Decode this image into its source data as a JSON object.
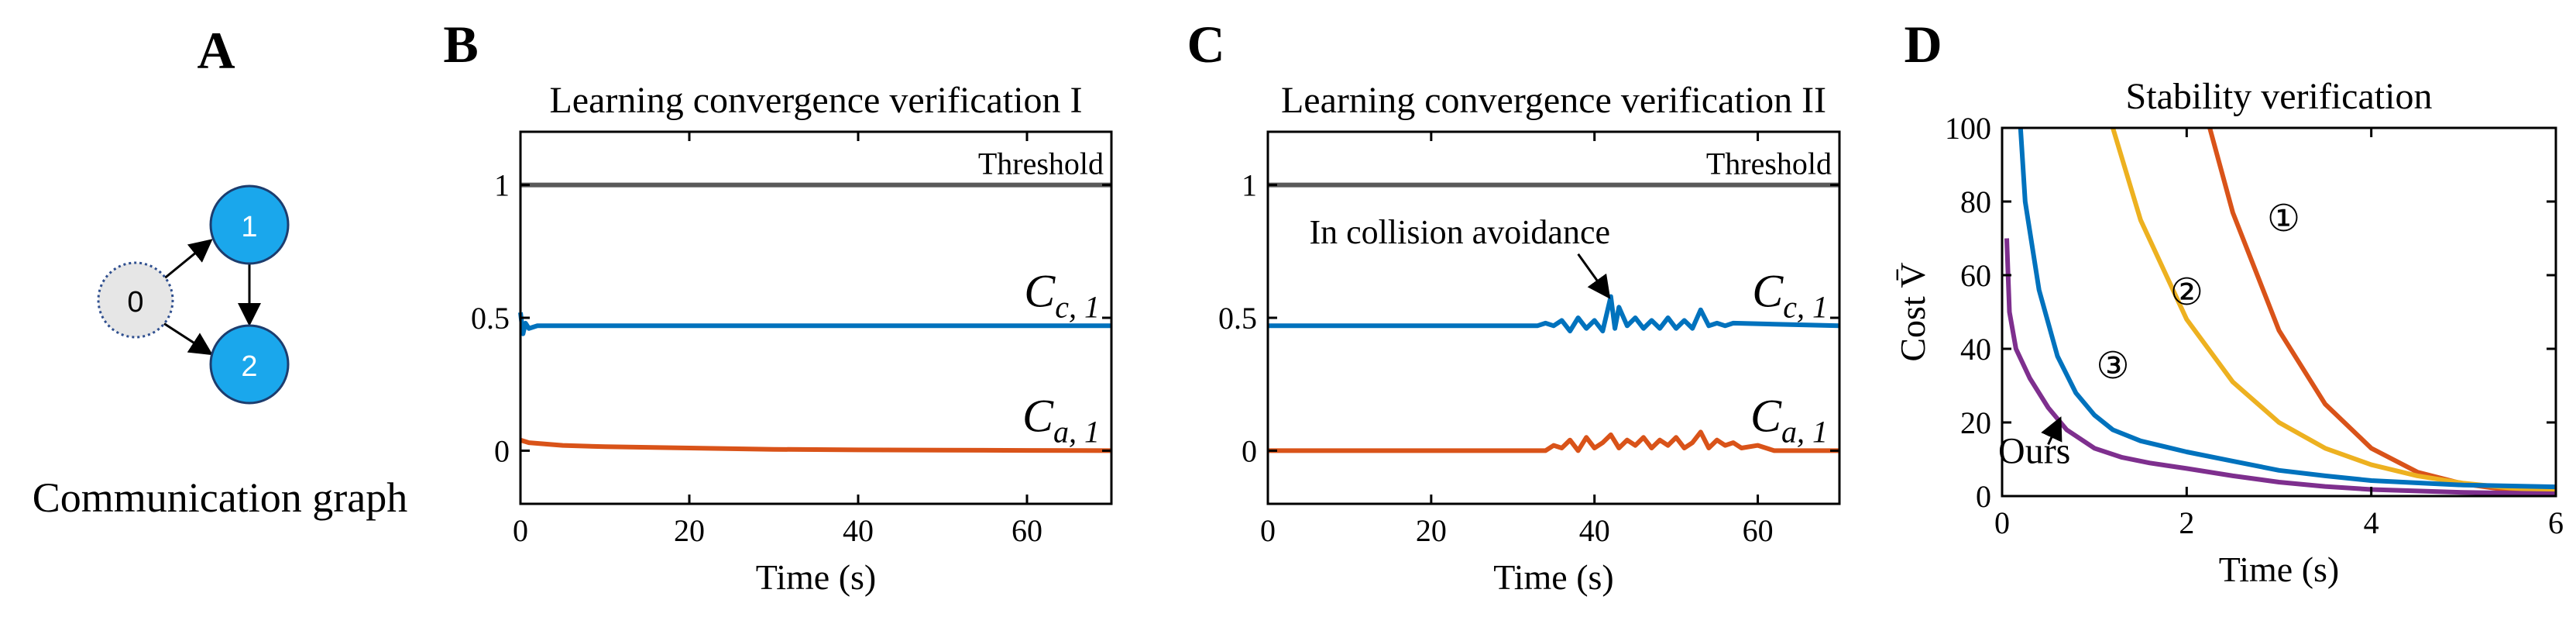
{
  "panels": {
    "A": {
      "letter": "A",
      "caption": "Communication graph",
      "nodes": [
        "0",
        "1",
        "2"
      ]
    },
    "B": {
      "letter": "B"
    },
    "C": {
      "letter": "C"
    },
    "D": {
      "letter": "D"
    }
  },
  "colors": {
    "blue": "#0072BD",
    "orange": "#D95319",
    "yellow": "#EDB120",
    "purple": "#7E2F8E",
    "threshold": "#595959",
    "node_fill": "#1AA7EC",
    "node0_fill": "#E6E6E6"
  },
  "chart_data": [
    {
      "id": "B",
      "type": "line",
      "title": "Learning convergence verification I",
      "xlabel": "Time (s)",
      "ylabel": "",
      "xlim": [
        0,
        70
      ],
      "ylim": [
        -0.2,
        1.2
      ],
      "xticks": [
        0,
        20,
        40,
        60
      ],
      "yticks": [
        0,
        0.5,
        1
      ],
      "ytick_labels": [
        "0",
        "0.5",
        "1"
      ],
      "threshold": {
        "value": 1,
        "label": "Threshold"
      },
      "series": [
        {
          "label_base": "C",
          "label_sub": "c, 1",
          "color": "blue",
          "x": [
            0,
            0.3,
            0.6,
            1,
            2,
            5,
            10,
            20,
            30,
            40,
            50,
            60,
            70
          ],
          "y": [
            0.52,
            0.44,
            0.48,
            0.46,
            0.47,
            0.47,
            0.47,
            0.47,
            0.47,
            0.47,
            0.47,
            0.47,
            0.47
          ]
        },
        {
          "label_base": "C",
          "label_sub": "a, 1",
          "color": "orange",
          "x": [
            0,
            1,
            5,
            10,
            20,
            30,
            40,
            50,
            60,
            70
          ],
          "y": [
            0.04,
            0.03,
            0.02,
            0.015,
            0.01,
            0.005,
            0.003,
            0.002,
            0.001,
            0.0
          ]
        }
      ]
    },
    {
      "id": "C",
      "type": "line",
      "title": "Learning convergence verification II",
      "xlabel": "Time (s)",
      "ylabel": "",
      "xlim": [
        0,
        70
      ],
      "ylim": [
        -0.2,
        1.2
      ],
      "xticks": [
        0,
        20,
        40,
        60
      ],
      "yticks": [
        0,
        0.5,
        1
      ],
      "ytick_labels": [
        "0",
        "0.5",
        "1"
      ],
      "threshold": {
        "value": 1,
        "label": "Threshold"
      },
      "annotation": {
        "text": "In collision avoidance",
        "x": 42,
        "y": 0.57
      },
      "series": [
        {
          "label_base": "C",
          "label_sub": "c, 1",
          "color": "blue",
          "x": [
            0,
            33,
            34,
            35,
            36,
            37,
            38,
            39,
            40,
            41,
            42,
            42.5,
            43,
            44,
            45,
            46,
            47,
            48,
            49,
            50,
            51,
            52,
            53,
            54,
            55,
            56,
            57,
            70
          ],
          "y": [
            0.47,
            0.47,
            0.48,
            0.47,
            0.49,
            0.45,
            0.5,
            0.46,
            0.49,
            0.45,
            0.58,
            0.46,
            0.54,
            0.47,
            0.5,
            0.46,
            0.49,
            0.46,
            0.5,
            0.46,
            0.49,
            0.46,
            0.53,
            0.47,
            0.48,
            0.47,
            0.48,
            0.47
          ]
        },
        {
          "label_base": "C",
          "label_sub": "a, 1",
          "color": "orange",
          "x": [
            0,
            34,
            35,
            36,
            37,
            38,
            39,
            40,
            41,
            42,
            43,
            44,
            45,
            46,
            47,
            48,
            49,
            50,
            51,
            52,
            53,
            54,
            55,
            56,
            57,
            58,
            60,
            62,
            70
          ],
          "y": [
            0.0,
            0.0,
            0.02,
            0.01,
            0.04,
            0.0,
            0.05,
            0.01,
            0.03,
            0.06,
            0.01,
            0.04,
            0.02,
            0.05,
            0.01,
            0.04,
            0.02,
            0.05,
            0.01,
            0.03,
            0.07,
            0.01,
            0.04,
            0.02,
            0.03,
            0.01,
            0.02,
            0.0,
            0.0
          ]
        }
      ]
    },
    {
      "id": "D",
      "type": "line",
      "title": "Stability verification",
      "xlabel": "Time (s)",
      "ylabel": "Cost V̄",
      "xlim": [
        0,
        6
      ],
      "ylim": [
        0,
        100
      ],
      "xticks": [
        0,
        2,
        4,
        6
      ],
      "yticks": [
        0,
        20,
        40,
        60,
        80,
        100
      ],
      "series": [
        {
          "label": "①",
          "color": "orange",
          "x": [
            2.25,
            2.5,
            3.0,
            3.5,
            4.0,
            4.5,
            5.0,
            5.5,
            6.0
          ],
          "y": [
            100,
            77,
            45,
            25,
            13,
            6.5,
            3.3,
            1.6,
            0.8
          ]
        },
        {
          "label": "②",
          "color": "yellow",
          "x": [
            1.2,
            1.5,
            2.0,
            2.5,
            3.0,
            3.5,
            4.0,
            4.5,
            5.0,
            5.5,
            6.0
          ],
          "y": [
            100,
            75,
            48,
            31,
            20,
            13,
            8.5,
            5.5,
            3.5,
            2.2,
            1.4
          ]
        },
        {
          "label": "③",
          "color": "blue",
          "x": [
            0.2,
            0.25,
            0.4,
            0.6,
            0.8,
            1.0,
            1.2,
            1.5,
            2.0,
            2.5,
            3.0,
            3.5,
            4.0,
            5.0,
            6.0
          ],
          "y": [
            100,
            80,
            56,
            38,
            28,
            22,
            18,
            15,
            12,
            9.5,
            7,
            5.5,
            4.2,
            3,
            2.5
          ]
        },
        {
          "label": "Ours",
          "color": "purple",
          "x": [
            0.05,
            0.08,
            0.15,
            0.3,
            0.5,
            0.7,
            1.0,
            1.3,
            1.6,
            2.0,
            2.5,
            3.0,
            3.5,
            4.0,
            5.0,
            6.0
          ],
          "y": [
            70,
            50,
            40,
            32,
            24,
            18,
            13,
            10.5,
            9,
            7.5,
            5.5,
            3.8,
            2.6,
            1.8,
            1.0,
            0.6
          ]
        }
      ],
      "label_positions": [
        {
          "text": "①",
          "x": 3.05,
          "y": 72
        },
        {
          "text": "②",
          "x": 2.0,
          "y": 52
        },
        {
          "text": "③",
          "x": 1.2,
          "y": 32
        },
        {
          "text": "Ours",
          "x": 0.35,
          "y": 9
        }
      ]
    }
  ]
}
